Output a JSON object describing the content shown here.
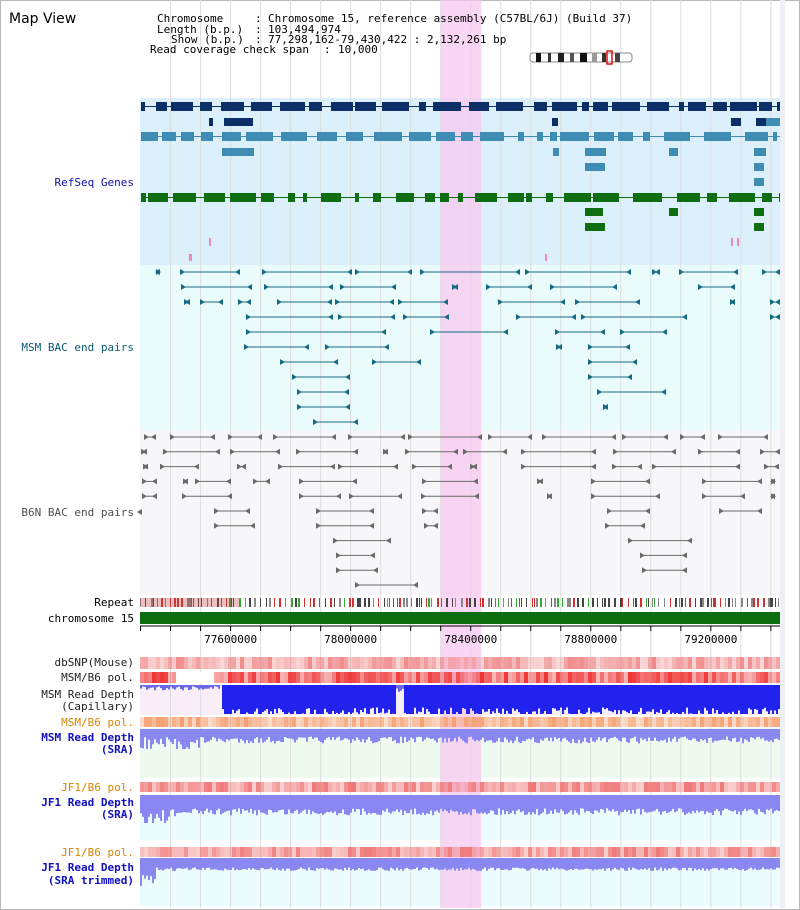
{
  "title": "Map View",
  "info": {
    "chromosome_label": "Chromosome",
    "chromosome_value": "Chromosome 15, reference assembly (C57BL/6J) (Build 37)",
    "length_label": "Length (b.p.)",
    "length_value": "103,494,974",
    "show_label": "Show (b.p.)",
    "show_value": "77,298,162-79,430,422 : 2,132,261 bp",
    "span_label": "Read coverage check span",
    "span_value": "10,000"
  },
  "colors": {
    "refseq_bg": "#dcf0fb",
    "msm_bac_bg": "#e9fbfb",
    "b6n_bac_bg": "#f7f7f9",
    "highlight": "#f7c8ef",
    "gene_dark": "#0b2f66",
    "gene_mid": "#3f8cb4",
    "gene_green": "#0f6e12",
    "msm_bac": "#176a84",
    "b6n_bac": "#6a6a6a",
    "read_depth": "#2222ee",
    "sra_depth": "#8888f0",
    "snp": "#f08a8a",
    "chrom": "#0d6e10"
  },
  "tracks": {
    "refseq": "RefSeq Genes",
    "msm_bac": "MSM BAC end pairs",
    "b6n_bac": "B6N BAC end pairs",
    "repeat": "Repeat",
    "chromosome": "chromosome 15",
    "dbsnp": "dbSNP(Mouse)",
    "msm_pol": "MSM/B6 pol.",
    "msm_cap_1": "MSM Read Depth",
    "msm_cap_2": "(Capillary)",
    "msm_pol2": "MSM/B6 pol.",
    "msm_sra_1": "MSM Read Depth",
    "msm_sra_2": "(SRA)",
    "jf1_pol": "JF1/B6 pol.",
    "jf1_sra_1": "JF1 Read Depth",
    "jf1_sra_2": "(SRA)",
    "jf1_pol2": "JF1/B6 pol.",
    "jf1_trim_1": "JF1 Read Depth",
    "jf1_trim_2": "(SRA trimmed)"
  },
  "axis": {
    "start_bp": 77298162,
    "end_bp": 79430422,
    "ticks": [
      "77600000",
      "78000000",
      "78400000",
      "78800000",
      "79200000"
    ],
    "highlight_range": [
      78300000,
      78435000
    ]
  }
}
